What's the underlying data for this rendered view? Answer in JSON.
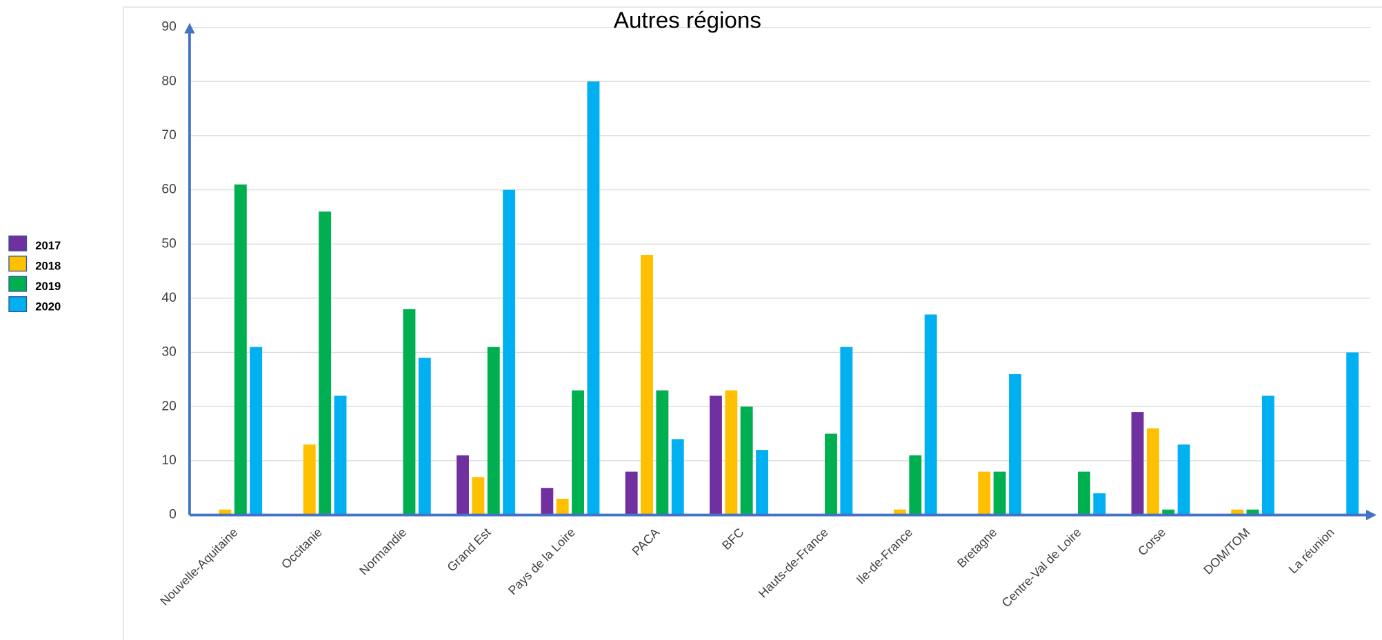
{
  "chart_data": {
    "type": "bar",
    "title": "Autres régions",
    "categories": [
      "Nouvelle-Aquitaine",
      "Occitanie",
      "Normandie",
      "Grand Est",
      "Pays de la Loire",
      "PACA",
      "BFC",
      "Hauts-de-France",
      "Ile-de-France",
      "Bretagne",
      "Centre-Val de Loire",
      "Corse",
      "DOM/TOM",
      "La réunion"
    ],
    "series": [
      {
        "name": "2017",
        "color": "#7030a0",
        "values": [
          0,
          0,
          0,
          11,
          5,
          8,
          22,
          0,
          0,
          0,
          0,
          19,
          0,
          0
        ]
      },
      {
        "name": "2018",
        "color": "#ffc000",
        "values": [
          1,
          13,
          0,
          7,
          3,
          48,
          23,
          0,
          1,
          8,
          0,
          16,
          1,
          0
        ]
      },
      {
        "name": "2019",
        "color": "#00b050",
        "values": [
          61,
          56,
          38,
          31,
          23,
          23,
          20,
          15,
          11,
          8,
          8,
          1,
          1,
          0
        ]
      },
      {
        "name": "2020",
        "color": "#00b0f0",
        "values": [
          31,
          22,
          29,
          60,
          80,
          14,
          12,
          31,
          37,
          26,
          4,
          13,
          22,
          30
        ]
      }
    ],
    "ylim": [
      0,
      90
    ],
    "yticks": [
      0,
      10,
      20,
      30,
      40,
      50,
      60,
      70,
      80,
      90
    ],
    "grid": true,
    "legend": "left"
  }
}
